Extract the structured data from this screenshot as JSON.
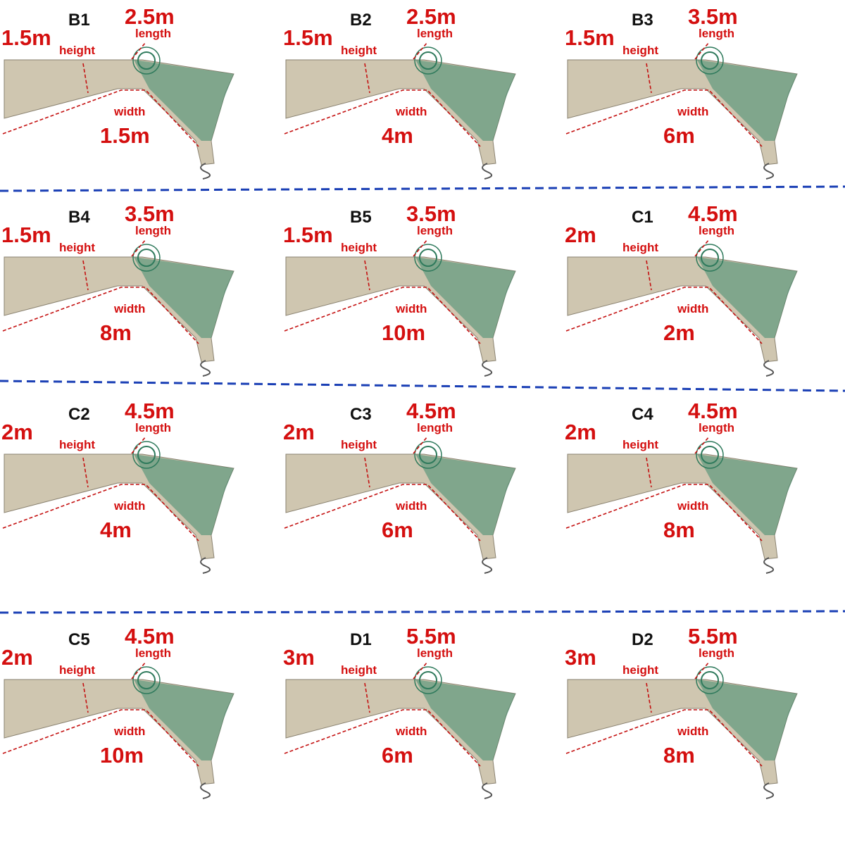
{
  "labels": {
    "height": "height",
    "length": "length",
    "width": "width"
  },
  "panels": [
    {
      "code": "B1",
      "height": "1.5m",
      "length": "2.5m",
      "width": "1.5m"
    },
    {
      "code": "B2",
      "height": "1.5m",
      "length": "2.5m",
      "width": "4m"
    },
    {
      "code": "B3",
      "height": "1.5m",
      "length": "3.5m",
      "width": "6m"
    },
    {
      "code": "B4",
      "height": "1.5m",
      "length": "3.5m",
      "width": "8m"
    },
    {
      "code": "B5",
      "height": "1.5m",
      "length": "3.5m",
      "width": "10m"
    },
    {
      "code": "C1",
      "height": "2m",
      "length": "4.5m",
      "width": "2m"
    },
    {
      "code": "C2",
      "height": "2m",
      "length": "4.5m",
      "width": "4m"
    },
    {
      "code": "C3",
      "height": "2m",
      "length": "4.5m",
      "width": "6m"
    },
    {
      "code": "C4",
      "height": "2m",
      "length": "4.5m",
      "width": "8m"
    },
    {
      "code": "C5",
      "height": "2m",
      "length": "4.5m",
      "width": "10m"
    },
    {
      "code": "D1",
      "height": "3m",
      "length": "5.5m",
      "width": "6m"
    },
    {
      "code": "D2",
      "height": "3m",
      "length": "5.5m",
      "width": "8m"
    }
  ]
}
